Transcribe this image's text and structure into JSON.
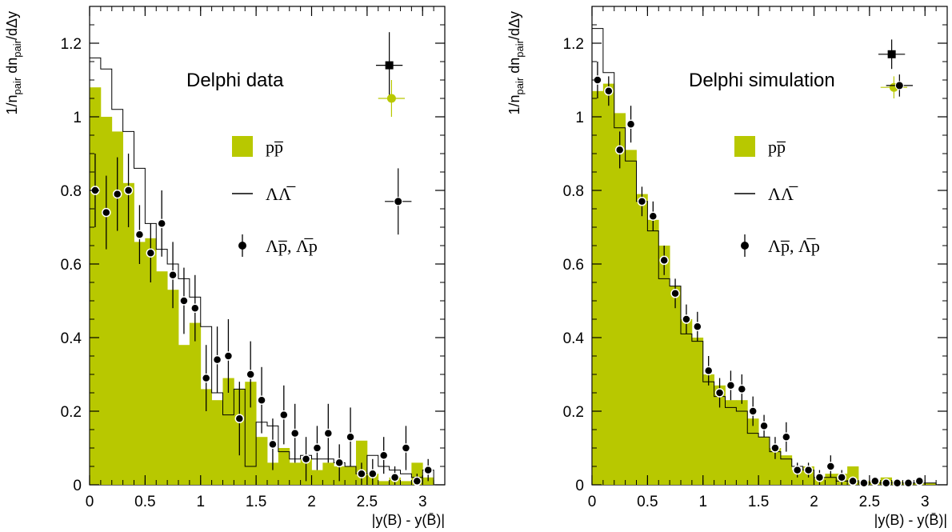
{
  "chart_data": [
    {
      "type": "bar",
      "panel_title": "Delphi data",
      "xlabel": "|y(B) - y(B̄)|",
      "ylabel": "1/n_pair dn_pair/dΔy",
      "ylabel_parts": {
        "a": "1/n",
        "a_sub": "pair",
        "b": " dn",
        "b_sub": "pair",
        "c": "/dΔy"
      },
      "xlim": [
        0,
        3.2
      ],
      "ylim": [
        0,
        1.3
      ],
      "x_ticks": [
        "0",
        "0.5",
        "1",
        "1.5",
        "2",
        "2.5",
        "3"
      ],
      "y_ticks": [
        "0",
        "0.2",
        "0.4",
        "0.6",
        "0.8",
        "1",
        "1.2"
      ],
      "bin_width": 0.1,
      "legend": [
        {
          "label": "p̅p",
          "text": "pp̅",
          "style": "filled-box"
        },
        {
          "label": "ΛΛ̅",
          "text": "ΛΛ̅",
          "style": "line"
        },
        {
          "label": "Λp̅, Λ̅p",
          "text": "Λp̅, Λ̅p",
          "style": "marker"
        }
      ],
      "series": [
        {
          "name": "pp̅",
          "style": "filled",
          "color": "#b8c800",
          "values": [
            1.08,
            1.0,
            0.96,
            0.82,
            0.66,
            0.67,
            0.58,
            0.53,
            0.38,
            0.44,
            0.26,
            0.23,
            0.29,
            0.26,
            0.28,
            0.13,
            0.06,
            0.1,
            0.06,
            0.07,
            0.04,
            0.06,
            0.05,
            0.05,
            0.12,
            0.03,
            0.01,
            0.02,
            0.01,
            0.06,
            0.02,
            0.0
          ]
        },
        {
          "name": "ΛΛ̅",
          "style": "step",
          "color": "#000000",
          "values": [
            1.16,
            1.13,
            1.02,
            0.96,
            0.86,
            0.71,
            0.64,
            0.6,
            0.56,
            0.51,
            0.43,
            0.25,
            0.19,
            0.26,
            0.05,
            0.17,
            0.16,
            0.09,
            0.07,
            0.08,
            0.07,
            0.07,
            0.06,
            0.05,
            0.03,
            0.08,
            0.05,
            0.04,
            0.03,
            0.02,
            0.04,
            0.0
          ]
        },
        {
          "name": "Λp̅, Λ̅p",
          "style": "points",
          "color": "#000000",
          "x": [
            0.05,
            0.15,
            0.25,
            0.35,
            0.45,
            0.55,
            0.65,
            0.75,
            0.85,
            0.95,
            1.05,
            1.15,
            1.25,
            1.35,
            1.45,
            1.55,
            1.65,
            1.75,
            1.85,
            1.95,
            2.05,
            2.15,
            2.25,
            2.35,
            2.45,
            2.55,
            2.65,
            2.75,
            2.85,
            2.95,
            3.05
          ],
          "y": [
            0.8,
            0.74,
            0.79,
            0.8,
            0.68,
            0.63,
            0.71,
            0.57,
            0.5,
            0.48,
            0.29,
            0.34,
            0.35,
            0.18,
            0.3,
            0.23,
            0.11,
            0.19,
            0.14,
            0.07,
            0.1,
            0.14,
            0.06,
            0.13,
            0.03,
            0.03,
            0.08,
            0.02,
            0.1,
            0.01,
            0.04
          ],
          "yerr": [
            0.1,
            0.1,
            0.1,
            0.1,
            0.08,
            0.08,
            0.09,
            0.09,
            0.09,
            0.09,
            0.09,
            0.09,
            0.1,
            0.1,
            0.09,
            0.09,
            0.07,
            0.08,
            0.08,
            0.06,
            0.06,
            0.08,
            0.05,
            0.08,
            0.03,
            0.04,
            0.05,
            0.03,
            0.06,
            0.02,
            0.03
          ]
        }
      ],
      "average_markers": [
        {
          "series": "ΛΛ̅",
          "shape": "square",
          "color": "#000000",
          "x": 2.7,
          "y": 1.14,
          "xerr": 0.12,
          "yerr": 0.09
        },
        {
          "series": "pp̅",
          "shape": "circle",
          "color": "#b8c800",
          "x": 2.72,
          "y": 1.05,
          "xerr": 0.12,
          "yerr": 0.05
        },
        {
          "series": "Λp̅, Λ̅p",
          "shape": "circle",
          "color": "#000000",
          "x": 2.78,
          "y": 0.77,
          "xerr": 0.12,
          "yerr": 0.09
        }
      ]
    },
    {
      "type": "bar",
      "panel_title": "Delphi simulation",
      "xlabel": "|y(B) - y(B̄)|",
      "ylabel": "1/n_pair dn_pair/dΔy",
      "ylabel_parts": {
        "a": "1/n",
        "a_sub": "pair",
        "b": " dn",
        "b_sub": "pair",
        "c": "/dΔy"
      },
      "xlim": [
        0,
        3.2
      ],
      "ylim": [
        0,
        1.3
      ],
      "x_ticks": [
        "0",
        "0.5",
        "1",
        "1.5",
        "2",
        "2.5",
        "3"
      ],
      "y_ticks": [
        "0",
        "0.2",
        "0.4",
        "0.6",
        "0.8",
        "1",
        "1.2"
      ],
      "bin_width": 0.1,
      "legend": [
        {
          "label": "p̅p",
          "text": "pp̅",
          "style": "filled-box"
        },
        {
          "label": "ΛΛ̅",
          "text": "ΛΛ̅",
          "style": "line"
        },
        {
          "label": "Λp̅, Λ̅p",
          "text": "Λp̅, Λ̅p",
          "style": "marker"
        }
      ],
      "series": [
        {
          "name": "pp̅",
          "style": "filled",
          "color": "#b8c800",
          "values": [
            1.07,
            1.09,
            1.01,
            0.91,
            0.79,
            0.72,
            0.65,
            0.54,
            0.45,
            0.4,
            0.3,
            0.27,
            0.23,
            0.23,
            0.18,
            0.13,
            0.1,
            0.08,
            0.04,
            0.05,
            0.02,
            0.03,
            0.03,
            0.05,
            0.01,
            0.01,
            0.02,
            0.01,
            0.005,
            0.005,
            0.005,
            0.0
          ]
        },
        {
          "name": "ΛΛ̅",
          "style": "step",
          "color": "#000000",
          "values": [
            1.24,
            1.12,
            0.97,
            0.88,
            0.77,
            0.69,
            0.56,
            0.54,
            0.41,
            0.39,
            0.28,
            0.24,
            0.21,
            0.2,
            0.14,
            0.13,
            0.09,
            0.07,
            0.05,
            0.04,
            0.02,
            0.02,
            0.01,
            0.01,
            0.005,
            0.005,
            0.005,
            0.005,
            0.005,
            0.005,
            0.005,
            0.0
          ]
        },
        {
          "name": "Λp̅, Λ̅p",
          "style": "points",
          "color": "#000000",
          "x": [
            0.05,
            0.15,
            0.25,
            0.35,
            0.45,
            0.55,
            0.65,
            0.75,
            0.85,
            0.95,
            1.05,
            1.15,
            1.25,
            1.35,
            1.45,
            1.55,
            1.65,
            1.75,
            1.85,
            1.95,
            2.05,
            2.15,
            2.25,
            2.35,
            2.45,
            2.55,
            2.65,
            2.75,
            2.85,
            2.95
          ],
          "y": [
            1.1,
            1.07,
            0.91,
            0.98,
            0.77,
            0.73,
            0.61,
            0.52,
            0.45,
            0.43,
            0.31,
            0.25,
            0.27,
            0.26,
            0.2,
            0.16,
            0.1,
            0.13,
            0.04,
            0.04,
            0.02,
            0.05,
            0.02,
            0.01,
            0.005,
            0.01,
            0.005,
            0.005,
            0.005,
            0.01
          ],
          "yerr": [
            0.05,
            0.04,
            0.05,
            0.05,
            0.04,
            0.04,
            0.04,
            0.04,
            0.04,
            0.04,
            0.04,
            0.04,
            0.04,
            0.04,
            0.04,
            0.03,
            0.03,
            0.04,
            0.02,
            0.02,
            0.02,
            0.03,
            0.02,
            0.01,
            0.005,
            0.01,
            0.005,
            0.005,
            0.005,
            0.01
          ]
        }
      ],
      "average_markers": [
        {
          "series": "ΛΛ̅",
          "shape": "square",
          "color": "#000000",
          "x": 2.7,
          "y": 1.17,
          "xerr": 0.12,
          "yerr": 0.04
        },
        {
          "series": "pp̅",
          "shape": "circle",
          "color": "#b8c800",
          "x": 2.72,
          "y": 1.08,
          "xerr": 0.12,
          "yerr": 0.03
        },
        {
          "series": "Λp̅, Λ̅p",
          "shape": "circle",
          "color": "#000000",
          "x": 2.77,
          "y": 1.085,
          "xerr": 0.12,
          "yerr": 0.03
        }
      ]
    }
  ]
}
